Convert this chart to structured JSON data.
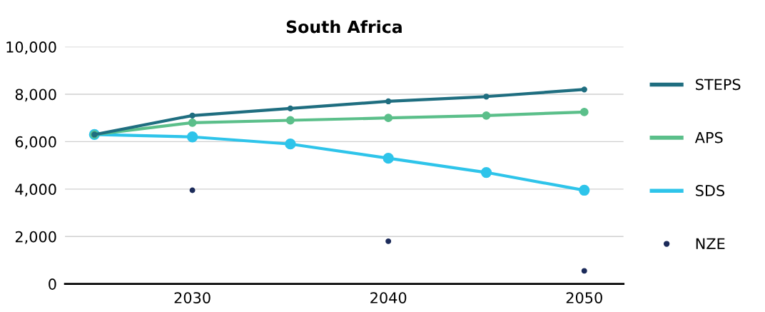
{
  "chart_data": {
    "type": "line",
    "title": "South Africa",
    "x": [
      2025,
      2030,
      2035,
      2040,
      2045,
      2050
    ],
    "series": [
      {
        "name": "STEPS",
        "color": "#1f6e80",
        "values": [
          6300,
          7100,
          7400,
          7700,
          7900,
          8200
        ]
      },
      {
        "name": "APS",
        "color": "#5bbf8a",
        "values": [
          6300,
          6800,
          6900,
          7000,
          7100,
          7250
        ]
      },
      {
        "name": "SDS",
        "color": "#2ec4ea",
        "values": [
          6300,
          6200,
          5900,
          5300,
          4700,
          3950
        ]
      },
      {
        "name": "NZE",
        "color": "#1c2b5a",
        "type": "scatter",
        "x": [
          2030,
          2040,
          2050
        ],
        "values": [
          3950,
          1800,
          550
        ]
      }
    ],
    "xlim": [
      2023.5,
      2052
    ],
    "xticks": [
      2030,
      2040,
      2050
    ],
    "ylim": [
      0,
      10000
    ],
    "yticks": [
      {
        "value": 0,
        "label": "0"
      },
      {
        "value": 2000,
        "label": "2,000"
      },
      {
        "value": 4000,
        "label": "4,000"
      },
      {
        "value": 6000,
        "label": "6,000"
      },
      {
        "value": 8000,
        "label": "8,000"
      },
      {
        "value": 10000,
        "label": "10,000"
      }
    ],
    "grid": "y",
    "legend": "right",
    "marker": "circle",
    "line_style": "solid"
  }
}
